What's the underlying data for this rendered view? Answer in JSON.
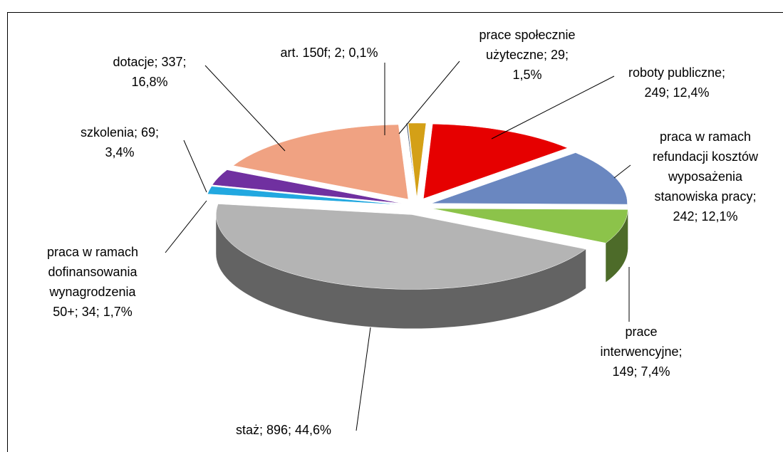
{
  "chart_data": {
    "type": "pie3d",
    "values": [
      2,
      29,
      249,
      242,
      149,
      896,
      34,
      69,
      337
    ],
    "data_labels": [
      [
        "art. 150f; 2; 0,1%"
      ],
      [
        "prace społecznie",
        "użyteczne; 29;",
        "1,5%"
      ],
      [
        "roboty publiczne;",
        "249; 12,4%"
      ],
      [
        "praca w ramach",
        "refundacji kosztów",
        "wyposażenia",
        "stanowiska pracy;",
        "242; 12,1%"
      ],
      [
        "prace",
        "interwencyjne;",
        "149; 7,4%"
      ],
      [
        "staż; 896; 44,6%"
      ],
      [
        "praca w ramach",
        "dofinansowania",
        "wynagrodzenia",
        "50+; 34; 1,7%"
      ],
      [
        "szkolenia; 69;",
        "3,4%"
      ],
      [
        "dotacje; 337;",
        "16,8%"
      ]
    ],
    "colors": [
      "#4a5a70",
      "#d4a017",
      "#e60000",
      "#6a87c0",
      "#8cc34a",
      "#b4b4b4",
      "#22a8e0",
      "#7030a0",
      "#f0a282"
    ]
  }
}
